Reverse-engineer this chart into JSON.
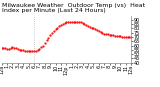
{
  "title_line1": "Milwaukee Weather  Outdoor Temp (vs)  Heat Index per Minute (Last 24 Hours)",
  "ylim": [
    40,
    95
  ],
  "xlim": [
    0,
    1439
  ],
  "line_color": "#ff0000",
  "bg_color": "#ffffff",
  "vline_x": 360,
  "vline_color": "#999999",
  "yticks": [
    40,
    45,
    50,
    55,
    60,
    65,
    70,
    75,
    80,
    85,
    90
  ],
  "x_data": [
    0,
    20,
    40,
    60,
    80,
    100,
    120,
    140,
    160,
    180,
    200,
    220,
    240,
    260,
    280,
    300,
    320,
    340,
    360,
    380,
    400,
    420,
    440,
    460,
    480,
    500,
    520,
    540,
    560,
    580,
    600,
    620,
    640,
    660,
    680,
    700,
    720,
    740,
    760,
    780,
    800,
    820,
    840,
    860,
    880,
    900,
    920,
    940,
    960,
    980,
    1000,
    1020,
    1040,
    1060,
    1080,
    1100,
    1120,
    1140,
    1160,
    1180,
    1200,
    1220,
    1240,
    1260,
    1280,
    1300,
    1320,
    1340,
    1360,
    1380,
    1400,
    1420,
    1439
  ],
  "y_data": [
    57,
    57,
    57,
    56,
    56,
    57,
    58,
    57,
    57,
    56,
    55,
    55,
    55,
    54,
    54,
    54,
    54,
    54,
    54,
    54,
    55,
    56,
    58,
    60,
    63,
    66,
    69,
    72,
    75,
    77,
    79,
    81,
    83,
    84,
    85,
    86,
    87,
    87,
    88,
    88,
    88,
    88,
    88,
    87,
    87,
    86,
    85,
    84,
    83,
    82,
    81,
    80,
    79,
    78,
    77,
    76,
    75,
    74,
    73,
    73,
    72,
    72,
    72,
    71,
    71,
    71,
    71,
    70,
    70,
    70,
    70,
    70,
    70
  ],
  "title_fontsize": 4.5,
  "tick_fontsize": 3.5,
  "xtick_labels": [
    "12a",
    "1",
    "2",
    "3",
    "4",
    "5",
    "6",
    "7",
    "8",
    "9",
    "10",
    "11",
    "12p",
    "1",
    "2",
    "3",
    "4",
    "5",
    "6",
    "7",
    "8",
    "9",
    "10",
    "11",
    "12a"
  ],
  "title_color": "#000000"
}
